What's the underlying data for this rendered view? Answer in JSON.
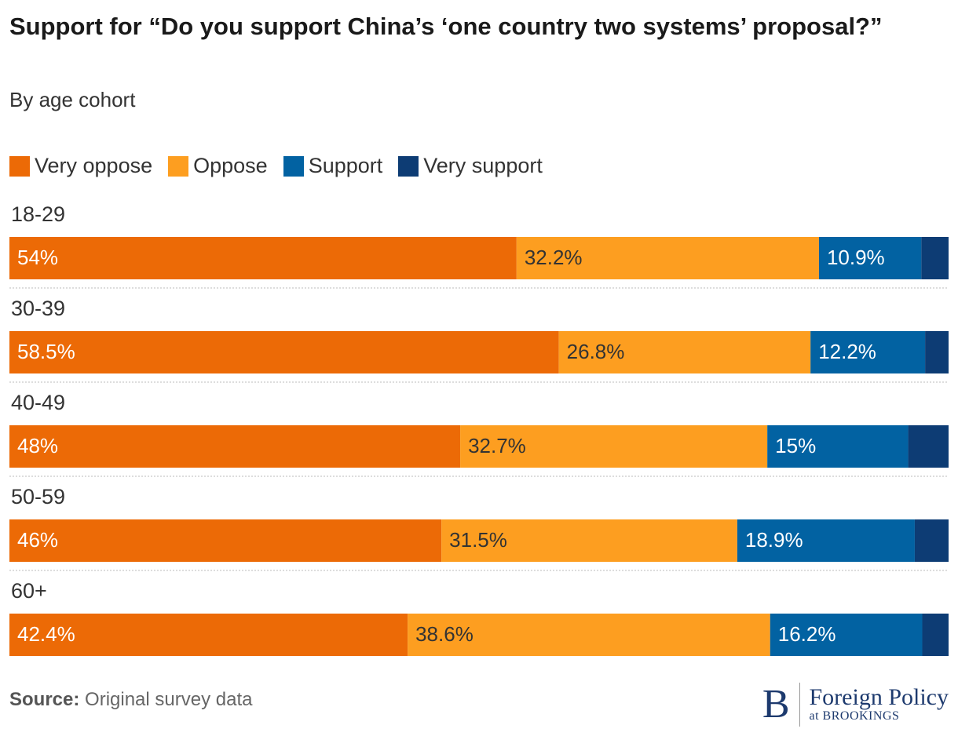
{
  "chart_data": {
    "type": "stacked-bar-horizontal",
    "title": "Support for “Do you support China’s ‘one country two systems’ proposal?”",
    "subtitle": "By age cohort",
    "categories": [
      "18-29",
      "30-39",
      "40-49",
      "50-59",
      "60+"
    ],
    "xlim": [
      0,
      100
    ],
    "series": [
      {
        "name": "Very oppose",
        "color": "#ec6a06",
        "label_color": "#ffffff",
        "values": [
          54,
          58.5,
          48,
          46,
          42.4
        ],
        "value_labels": [
          "54%",
          "58.5%",
          "48%",
          "46%",
          "42.4%"
        ]
      },
      {
        "name": "Oppose",
        "color": "#fd9e20",
        "label_color": "#333333",
        "values": [
          32.2,
          26.8,
          32.7,
          31.5,
          38.6
        ],
        "value_labels": [
          "32.2%",
          "26.8%",
          "32.7%",
          "31.5%",
          "38.6%"
        ]
      },
      {
        "name": "Support",
        "color": "#0262a2",
        "label_color": "#ffffff",
        "values": [
          10.9,
          12.2,
          15,
          18.9,
          16.2
        ],
        "value_labels": [
          "10.9%",
          "12.2%",
          "15%",
          "18.9%",
          "16.2%"
        ]
      },
      {
        "name": "Very support",
        "color": "#0d3c74",
        "values": [
          2.9,
          2.5,
          4.3,
          3.6,
          2.8
        ]
      }
    ],
    "source_label": "Source:",
    "source": "Original survey data"
  },
  "logo": {
    "mark": "B",
    "name": "Foreign Policy",
    "sub": "at BROOKINGS"
  }
}
